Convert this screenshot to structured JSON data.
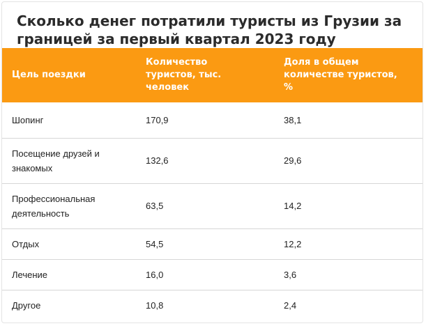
{
  "title": "Сколько денег потратили туристы из Грузии за границей за первый квартал 2023 году",
  "columns": [
    "Цель поездки",
    "Количество туристов, тыс. человек",
    "Доля в общем количестве туристов, %"
  ],
  "rows": [
    [
      "Шопинг",
      "170,9",
      "38,1"
    ],
    [
      "Посещение друзей и знакомых",
      "132,6",
      "29,6"
    ],
    [
      "Профессиональная деятельность",
      "63,5",
      "14,2"
    ],
    [
      "Отдых",
      "54,5",
      "12,2"
    ],
    [
      "Лечение",
      "16,0",
      "3,6"
    ],
    [
      "Другое",
      "10,8",
      "2,4"
    ]
  ],
  "colors": {
    "header_bg": "#fb9a12",
    "header_text": "#ffffff",
    "row_border": "#d6d6d6"
  }
}
